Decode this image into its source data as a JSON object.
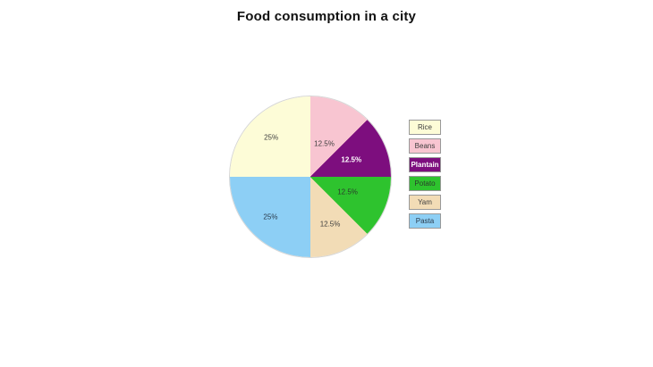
{
  "page": {
    "background": "#ffffff"
  },
  "chart_data": {
    "type": "pie",
    "title": "Food consumption in a city",
    "start_angle_deg_clockwise_from_top": 270,
    "direction": "clockwise",
    "legend_position": "right",
    "grid": false,
    "total_percent": 100,
    "categories": [
      "Rice",
      "Beans",
      "Plantain",
      "Potato",
      "Yam",
      "Pasta"
    ],
    "values": [
      25,
      12.5,
      12.5,
      12.5,
      12.5,
      25
    ],
    "series": [
      {
        "label": "Rice",
        "value": 25,
        "pct_label": "25%",
        "color": "#FDFCD7",
        "text_color": "#3d3d3d",
        "bold": false,
        "label_distance": 0.69
      },
      {
        "label": "Beans",
        "value": 12.5,
        "pct_label": "12.5%",
        "color": "#F8C5D1",
        "text_color": "#3d3d3d",
        "bold": false,
        "label_distance": 0.45
      },
      {
        "label": "Plantain",
        "value": 12.5,
        "pct_label": "12.5%",
        "color": "#7D0E7E",
        "text_color": "#ffffff",
        "bold": true,
        "label_distance": 0.55
      },
      {
        "label": "Potato",
        "value": 12.5,
        "pct_label": "12.5%",
        "color": "#2EC32E",
        "text_color": "#2b3a2b",
        "bold": false,
        "label_distance": 0.5
      },
      {
        "label": "Yam",
        "value": 12.5,
        "pct_label": "12.5%",
        "color": "#F2DCB6",
        "text_color": "#3d3d3d",
        "bold": false,
        "label_distance": 0.64
      },
      {
        "label": "Pasta",
        "value": 25,
        "pct_label": "25%",
        "color": "#8DCFF5",
        "text_color": "#2b3a4a",
        "bold": false,
        "label_distance": 0.7
      }
    ]
  }
}
